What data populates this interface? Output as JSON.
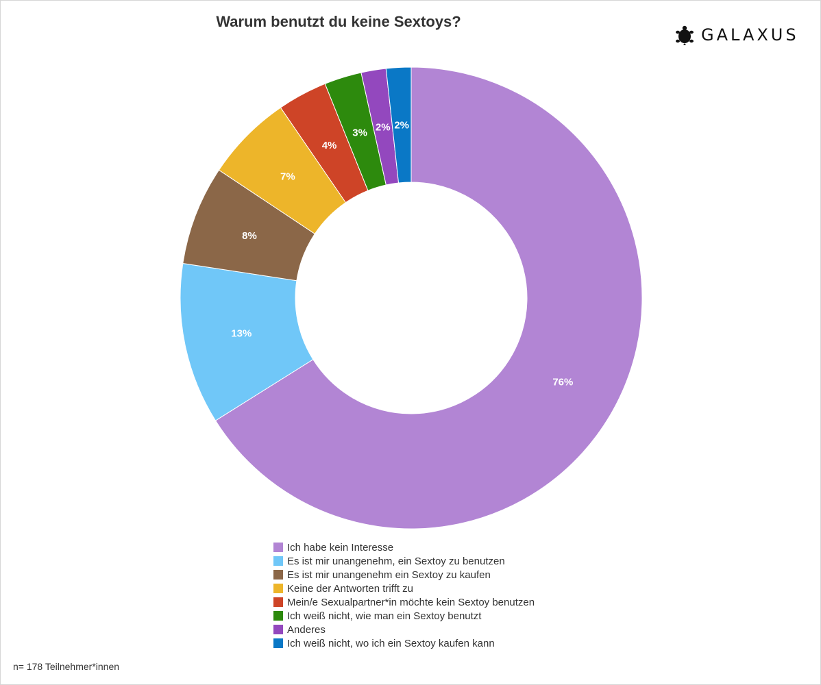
{
  "brand": {
    "name": "GALAXUS",
    "logo_icon": "turtle-icon"
  },
  "footnote": "n= 178 Teilnehmer*innen",
  "chart_data": {
    "type": "pie",
    "variant": "donut",
    "title": "Warum benutzt du keine Sextoys?",
    "legend_position": "bottom",
    "categories": [
      "Ich habe kein Interesse",
      "Es ist mir unangenehm, ein Sextoy zu benutzen",
      "Es ist mir unangenehm ein Sextoy zu kaufen",
      "Keine der Antworten trifft zu",
      "Mein/e Sexualpartner*in möchte kein Sextoy benutzen",
      "Ich weiß nicht, wie man ein Sextoy benutzt",
      "Anderes",
      "Ich weiß nicht, wo ich ein Sextoy kaufen kann"
    ],
    "values": [
      76,
      13,
      8,
      7,
      4,
      3,
      2,
      2
    ],
    "labels": [
      "76%",
      "13%",
      "8%",
      "7%",
      "4%",
      "3%",
      "2%",
      "2%"
    ],
    "colors": [
      "#b285d4",
      "#70c7f8",
      "#8b6748",
      "#edb52a",
      "#ce4427",
      "#2d8a0d",
      "#9348be",
      "#0a78c6"
    ]
  }
}
